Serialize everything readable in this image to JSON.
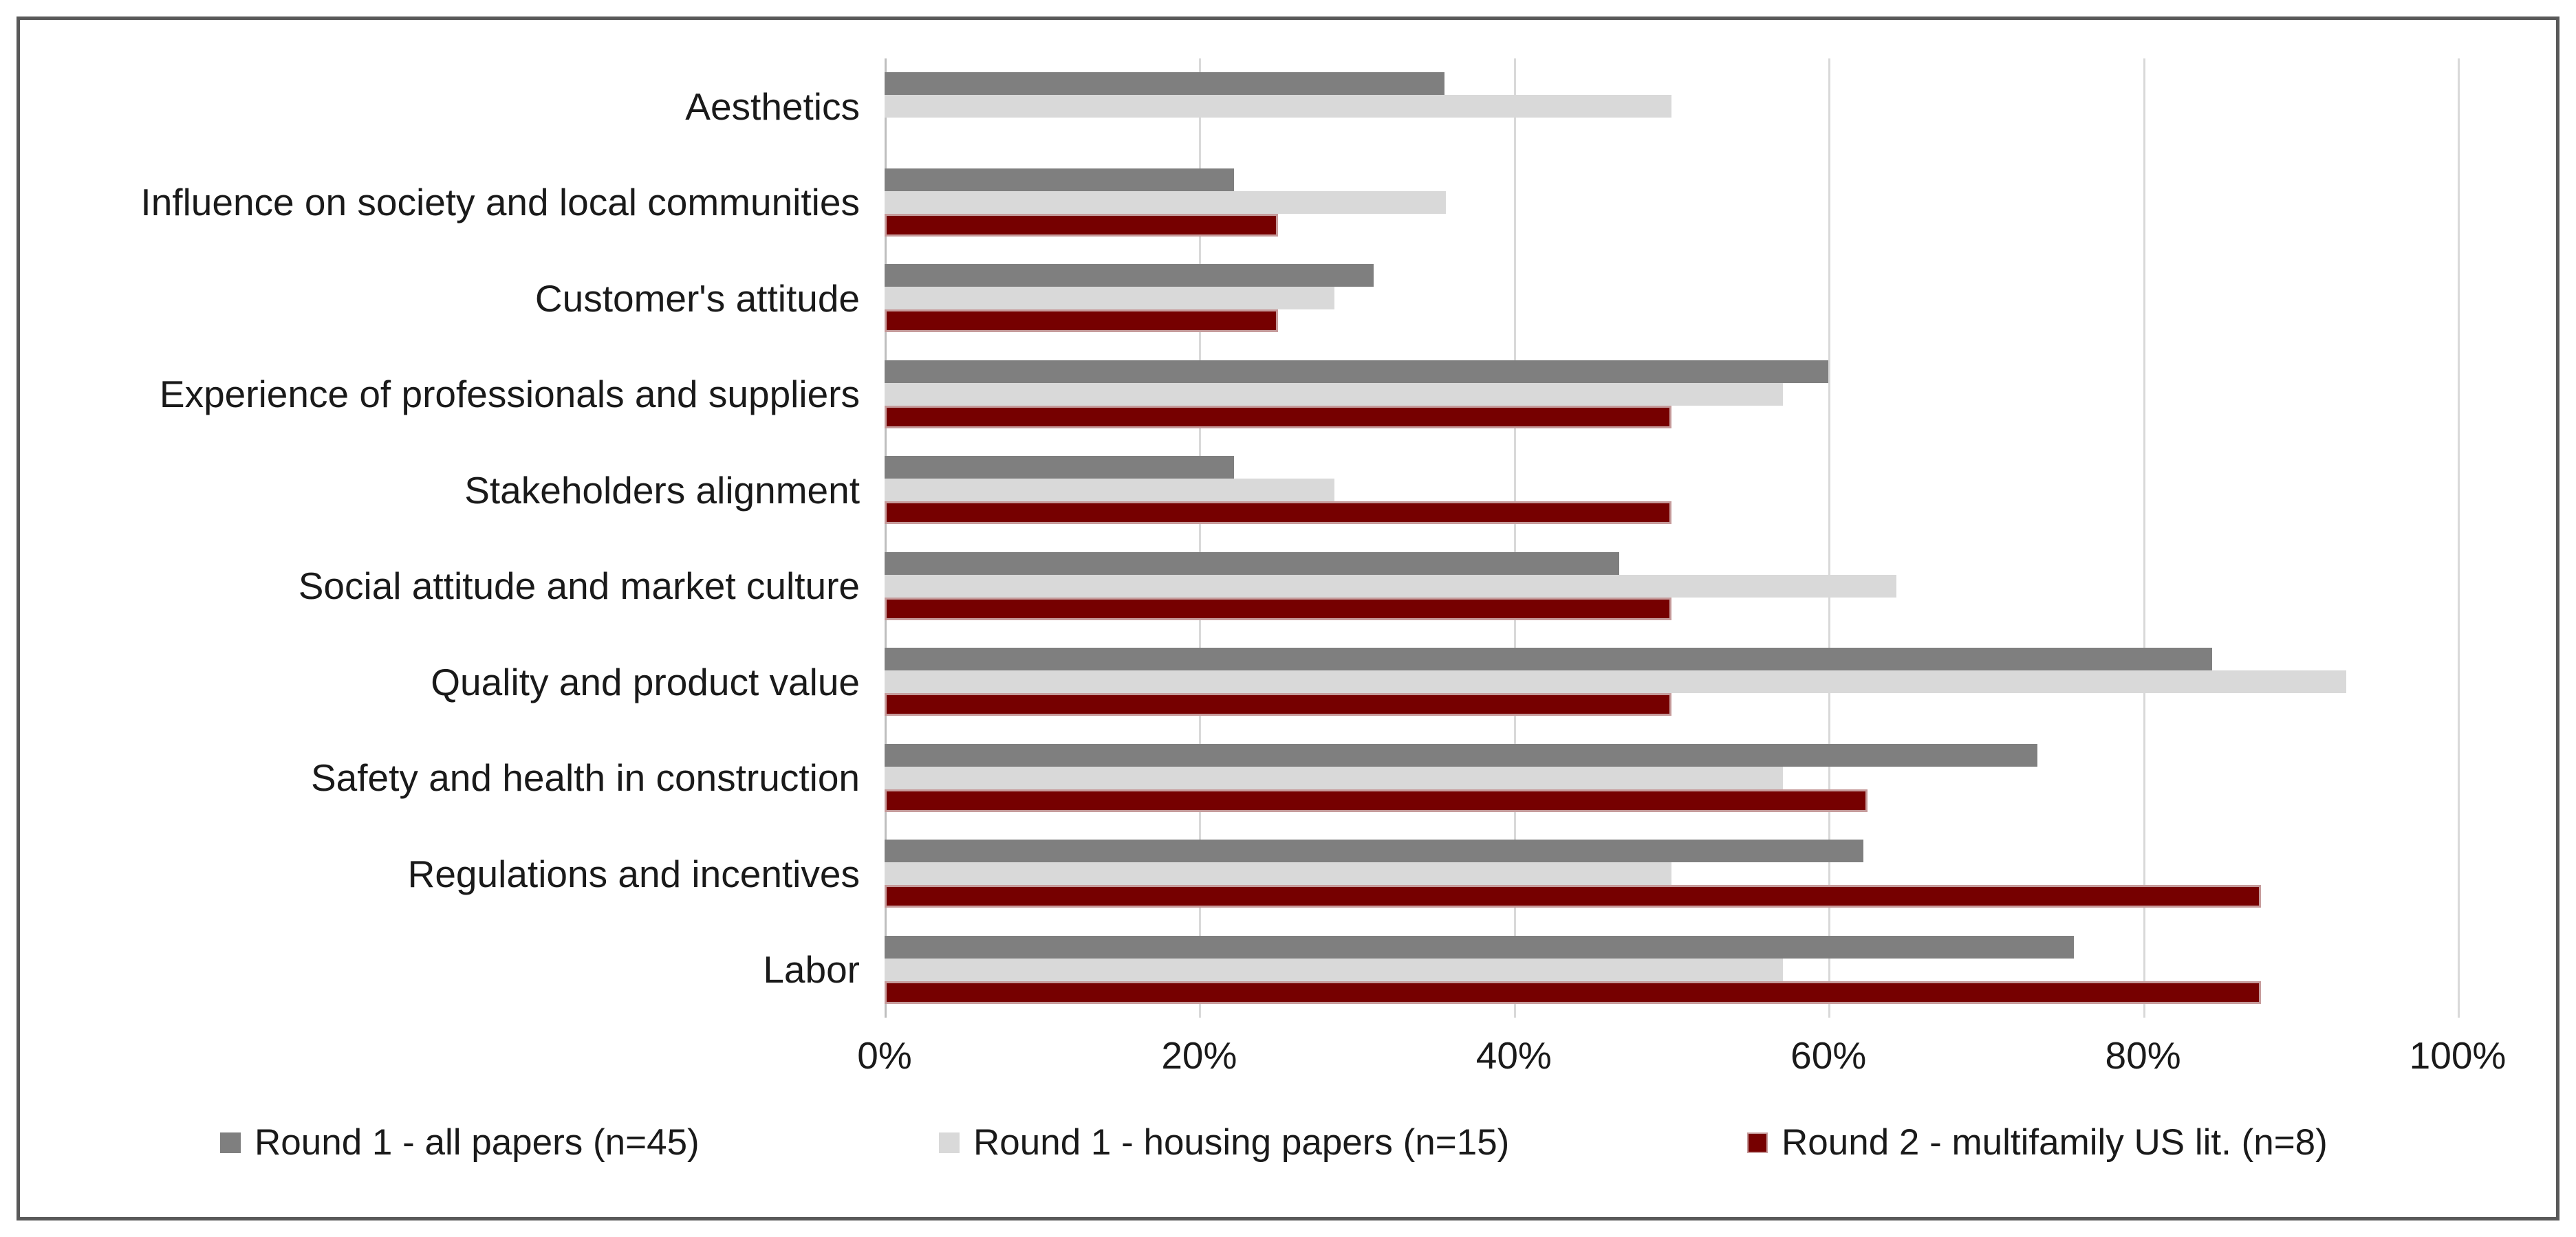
{
  "chart_data": {
    "type": "bar",
    "orientation": "horizontal",
    "title": "",
    "xlabel": "",
    "ylabel": "",
    "grid": true,
    "legend_position": "bottom",
    "xlim": [
      0,
      100
    ],
    "tick_values": [
      0,
      20,
      40,
      60,
      80,
      100
    ],
    "x_ticks": [
      "0%",
      "20%",
      "40%",
      "60%",
      "80%",
      "100%"
    ],
    "categories": [
      "Aesthetics",
      "Influence on society and local communities",
      "Customer's attitude",
      "Experience of professionals and suppliers",
      "Stakeholders alignment",
      "Social attitude and market culture",
      "Quality and product value",
      "Safety and health in construction",
      "Regulations and incentives",
      "Labor"
    ],
    "series": [
      {
        "name": "Round 1 - all papers (n=45)",
        "color": "#7F7F7F",
        "values": [
          35.6,
          22.2,
          31.1,
          60.0,
          22.2,
          46.7,
          84.4,
          73.3,
          62.2,
          75.6
        ]
      },
      {
        "name": "Round 1 - housing papers (n=15)",
        "color": "#D9D9D9",
        "values": [
          50.0,
          35.7,
          28.6,
          57.1,
          28.6,
          64.3,
          92.9,
          57.1,
          50.0,
          57.1
        ]
      },
      {
        "name": "Round 2 - multifamily US lit. (n=8)",
        "color": "#760000",
        "border_color": "#C69B9B",
        "values": [
          0,
          25.0,
          25.0,
          50.0,
          50.0,
          50.0,
          50.0,
          62.5,
          87.5,
          87.5
        ]
      }
    ]
  },
  "colors": {
    "background": "#FFFFFF",
    "frame_border": "#595959",
    "gridline": "#D9D9D9",
    "axis_line": "#BFBFBF",
    "text": "#1A1A1A"
  }
}
